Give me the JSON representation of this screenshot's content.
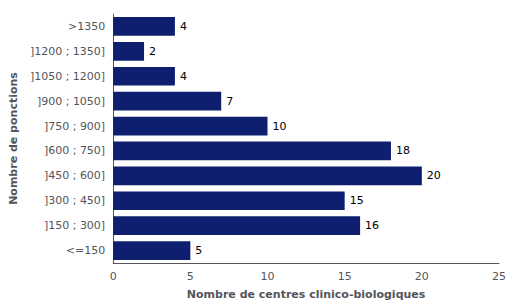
{
  "chart_data": {
    "type": "bar",
    "orientation": "horizontal",
    "categories": [
      ">1350",
      "]1200 ; 1350]",
      "]1050 ; 1200]",
      "]900 ; 1050]",
      "]750 ; 900]",
      "]600 ; 750]",
      "]450 ; 600]",
      "]300 ; 450]",
      "]150 ; 300]",
      "<=150"
    ],
    "values": [
      4,
      2,
      4,
      7,
      10,
      18,
      20,
      15,
      16,
      5
    ],
    "color": "#0D1F6E",
    "xlabel": "Nombre de centres clinico-biologiques",
    "ylabel": "Nombre de ponctions",
    "xlim": [
      0,
      25
    ],
    "xticks": [
      0,
      5,
      10,
      15,
      20,
      25
    ],
    "grid": false,
    "data_labels": true
  }
}
